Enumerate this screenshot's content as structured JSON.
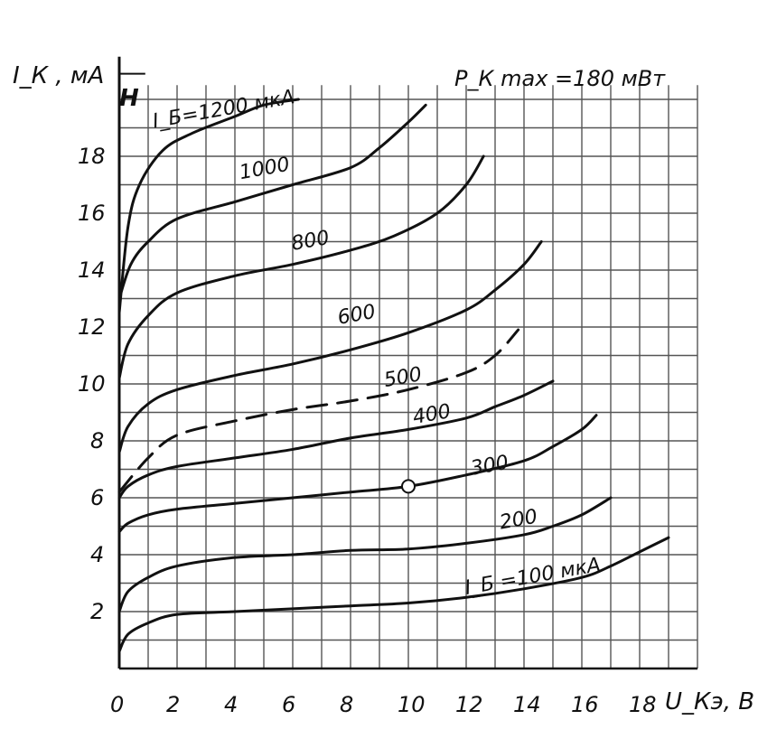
{
  "chart_data": {
    "type": "line",
    "title": "",
    "xlabel": "U_Кэ, В",
    "ylabel": "I_К , мА",
    "axis_marker": "Н",
    "annotation": "P_К max =180 мВт",
    "xlim": [
      0,
      20
    ],
    "ylim": [
      0,
      20
    ],
    "x_ticks": [
      "0",
      "2",
      "4",
      "6",
      "8",
      "10",
      "12",
      "14",
      "16",
      "18"
    ],
    "y_ticks": [
      "2",
      "4",
      "6",
      "8",
      "10",
      "12",
      "14",
      "16",
      "18"
    ],
    "grid": true,
    "legend": "none",
    "operating_point": {
      "x": 10,
      "y": 6.4
    },
    "series": [
      {
        "name": "I_Б =100 мкА",
        "dashed": false,
        "points": [
          [
            0,
            0.6
          ],
          [
            0.3,
            1.2
          ],
          [
            1,
            1.6
          ],
          [
            2,
            1.9
          ],
          [
            4,
            2.0
          ],
          [
            6,
            2.1
          ],
          [
            8,
            2.2
          ],
          [
            10,
            2.3
          ],
          [
            12,
            2.5
          ],
          [
            14,
            2.8
          ],
          [
            16,
            3.2
          ],
          [
            17,
            3.6
          ],
          [
            18,
            4.1
          ],
          [
            19,
            4.6
          ]
        ]
      },
      {
        "name": "200",
        "dashed": false,
        "points": [
          [
            0,
            2.0
          ],
          [
            0.3,
            2.7
          ],
          [
            1,
            3.2
          ],
          [
            2,
            3.6
          ],
          [
            4,
            3.9
          ],
          [
            6,
            4.0
          ],
          [
            8,
            4.15
          ],
          [
            10,
            4.2
          ],
          [
            12,
            4.4
          ],
          [
            14,
            4.7
          ],
          [
            15,
            5.0
          ],
          [
            16,
            5.4
          ],
          [
            17,
            6.0
          ]
        ]
      },
      {
        "name": "300",
        "dashed": false,
        "points": [
          [
            0,
            4.8
          ],
          [
            0.3,
            5.1
          ],
          [
            1,
            5.4
          ],
          [
            2,
            5.6
          ],
          [
            4,
            5.8
          ],
          [
            6,
            6.0
          ],
          [
            8,
            6.2
          ],
          [
            10,
            6.4
          ],
          [
            12,
            6.8
          ],
          [
            14,
            7.3
          ],
          [
            15,
            7.8
          ],
          [
            16,
            8.4
          ],
          [
            16.5,
            8.9
          ]
        ]
      },
      {
        "name": "400",
        "dashed": false,
        "points": [
          [
            0,
            6.0
          ],
          [
            0.3,
            6.4
          ],
          [
            1,
            6.8
          ],
          [
            2,
            7.1
          ],
          [
            4,
            7.4
          ],
          [
            6,
            7.7
          ],
          [
            8,
            8.1
          ],
          [
            10,
            8.4
          ],
          [
            12,
            8.8
          ],
          [
            13,
            9.2
          ],
          [
            14,
            9.6
          ],
          [
            15,
            10.1
          ]
        ]
      },
      {
        "name": "500",
        "dashed": true,
        "points": [
          [
            0,
            6.2
          ],
          [
            1,
            7.4
          ],
          [
            2,
            8.2
          ],
          [
            4,
            8.7
          ],
          [
            6,
            9.1
          ],
          [
            8,
            9.4
          ],
          [
            10,
            9.8
          ],
          [
            12,
            10.4
          ],
          [
            13,
            11.0
          ],
          [
            13.8,
            11.9
          ]
        ]
      },
      {
        "name": "600",
        "dashed": false,
        "points": [
          [
            0,
            7.6
          ],
          [
            0.3,
            8.5
          ],
          [
            1,
            9.3
          ],
          [
            2,
            9.8
          ],
          [
            4,
            10.3
          ],
          [
            6,
            10.7
          ],
          [
            8,
            11.2
          ],
          [
            10,
            11.8
          ],
          [
            12,
            12.6
          ],
          [
            13,
            13.3
          ],
          [
            14,
            14.2
          ],
          [
            14.6,
            15.0
          ]
        ]
      },
      {
        "name": "800",
        "dashed": false,
        "points": [
          [
            0,
            10.2
          ],
          [
            0.3,
            11.4
          ],
          [
            1,
            12.4
          ],
          [
            2,
            13.2
          ],
          [
            4,
            13.8
          ],
          [
            6,
            14.2
          ],
          [
            8,
            14.7
          ],
          [
            9.5,
            15.2
          ],
          [
            11,
            16.0
          ],
          [
            12,
            17.0
          ],
          [
            12.6,
            18.0
          ]
        ]
      },
      {
        "name": "1000",
        "dashed": false,
        "points": [
          [
            0,
            13.0
          ],
          [
            0.4,
            14.2
          ],
          [
            1,
            15.0
          ],
          [
            2,
            15.8
          ],
          [
            4,
            16.4
          ],
          [
            6,
            17.0
          ],
          [
            8,
            17.6
          ],
          [
            9,
            18.3
          ],
          [
            10,
            19.2
          ],
          [
            10.6,
            19.8
          ]
        ]
      },
      {
        "name": "I_Б=1200 мкА",
        "dashed": false,
        "points": [
          [
            0,
            12.5
          ],
          [
            0.3,
            15.5
          ],
          [
            0.7,
            17.0
          ],
          [
            1.5,
            18.2
          ],
          [
            2.5,
            18.8
          ],
          [
            4,
            19.4
          ],
          [
            5,
            19.8
          ],
          [
            6.2,
            20.0
          ]
        ]
      }
    ],
    "curve_labels": [
      {
        "text": "I_Б =100 мкА",
        "x": 12.0,
        "y": 2.6
      },
      {
        "text": "200",
        "x": 13.2,
        "y": 4.9
      },
      {
        "text": "300",
        "x": 12.2,
        "y": 6.8
      },
      {
        "text": "400",
        "x": 10.2,
        "y": 8.6
      },
      {
        "text": "500",
        "x": 9.2,
        "y": 9.9
      },
      {
        "text": "600",
        "x": 7.6,
        "y": 12.1
      },
      {
        "text": "800",
        "x": 6.0,
        "y": 14.7
      },
      {
        "text": "1000",
        "x": 4.2,
        "y": 17.2
      },
      {
        "text": "I_Б=1200 мкА",
        "x": 1.2,
        "y": 19.0
      }
    ]
  }
}
